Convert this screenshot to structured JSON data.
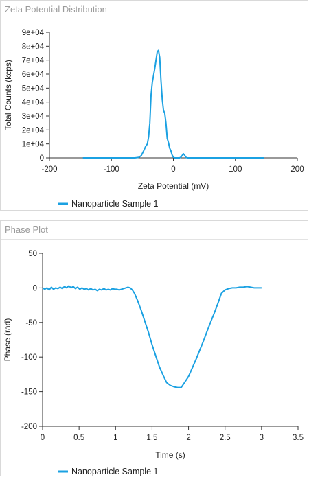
{
  "colors": {
    "series": "#1ba1e2",
    "axis": "#333333",
    "header_text": "#9a9a9a"
  },
  "panels": {
    "zeta": {
      "title": "Zeta Potential Distribution"
    },
    "phase": {
      "title": "Phase Plot"
    }
  },
  "chart_data": [
    {
      "type": "line",
      "title": "Zeta Potential Distribution",
      "xlabel": "Zeta Potential (mV)",
      "ylabel": "Total Counts (kcps)",
      "xlim": [
        -200,
        200
      ],
      "ylim": [
        0,
        90000
      ],
      "xticks": [
        -200,
        -100,
        0,
        100,
        200
      ],
      "xtick_labels": [
        "-200",
        "-100",
        "0",
        "100",
        "200"
      ],
      "yticks": [
        0,
        10000,
        20000,
        30000,
        40000,
        50000,
        60000,
        70000,
        80000,
        90000
      ],
      "ytick_labels": [
        "0",
        "1e+04",
        "2e+04",
        "3e+04",
        "4e+04",
        "5e+04",
        "6e+04",
        "7e+04",
        "8e+04",
        "9e+04"
      ],
      "legend_position": "bottom",
      "grid": false,
      "series": [
        {
          "name": "Nanoparticle Sample 1",
          "x": [
            -146,
            -120,
            -100,
            -80,
            -62,
            -56,
            -52,
            -48,
            -45,
            -42,
            -40,
            -38,
            -36,
            -34,
            -32,
            -30,
            -28,
            -26,
            -24,
            -22,
            -20,
            -18,
            -16,
            -14,
            -12,
            -10,
            -8,
            -6,
            -4,
            -2,
            0,
            2,
            4,
            6,
            8,
            10,
            12,
            14,
            16,
            18,
            20,
            22,
            26,
            30,
            40,
            60,
            80,
            100,
            120,
            146
          ],
          "y": [
            0,
            0,
            0,
            0,
            0,
            400,
            1500,
            5000,
            8000,
            10000,
            15000,
            25000,
            45000,
            54000,
            59000,
            64000,
            70000,
            76000,
            77000,
            72000,
            55000,
            42000,
            34000,
            32000,
            25000,
            14000,
            11000,
            7000,
            5000,
            2000,
            500,
            0,
            0,
            0,
            0,
            0,
            500,
            1500,
            3000,
            2000,
            500,
            0,
            0,
            0,
            0,
            0,
            0,
            0,
            0,
            0
          ]
        }
      ]
    },
    {
      "type": "line",
      "title": "Phase Plot",
      "xlabel": "Time (s)",
      "ylabel": "Phase (rad)",
      "xlim": [
        0,
        3.5
      ],
      "ylim": [
        -200,
        50
      ],
      "xticks": [
        0,
        0.5,
        1,
        1.5,
        2,
        2.5,
        3,
        3.5
      ],
      "xtick_labels": [
        "0",
        "0.5",
        "1",
        "1.5",
        "2",
        "2.5",
        "3",
        "3.5"
      ],
      "yticks": [
        -200,
        -150,
        -100,
        -50,
        0,
        50
      ],
      "ytick_labels": [
        "-200",
        "-150",
        "-100",
        "-50",
        "0",
        "50"
      ],
      "legend_position": "bottom",
      "grid": false,
      "series": [
        {
          "name": "Nanoparticle Sample 1",
          "x": [
            0.0,
            0.03,
            0.06,
            0.09,
            0.12,
            0.15,
            0.18,
            0.21,
            0.24,
            0.27,
            0.3,
            0.33,
            0.36,
            0.39,
            0.42,
            0.45,
            0.48,
            0.51,
            0.54,
            0.57,
            0.6,
            0.63,
            0.66,
            0.69,
            0.72,
            0.75,
            0.78,
            0.81,
            0.84,
            0.87,
            0.9,
            0.93,
            0.96,
            0.99,
            1.02,
            1.05,
            1.08,
            1.11,
            1.14,
            1.17,
            1.2,
            1.23,
            1.26,
            1.3,
            1.35,
            1.4,
            1.45,
            1.5,
            1.55,
            1.6,
            1.65,
            1.7,
            1.75,
            1.8,
            1.85,
            1.9,
            1.95,
            2.0,
            2.05,
            2.1,
            2.15,
            2.2,
            2.25,
            2.3,
            2.35,
            2.4,
            2.45,
            2.5,
            2.55,
            2.6,
            2.65,
            2.7,
            2.75,
            2.8,
            2.85,
            2.9,
            2.95,
            3.0
          ],
          "y": [
            0,
            -2,
            0,
            -3,
            1,
            -2,
            0,
            -1,
            1,
            -1,
            2,
            0,
            3,
            0,
            2,
            -1,
            1,
            -2,
            0,
            -2,
            -1,
            -3,
            -1,
            -3,
            -2,
            -4,
            -2,
            -3,
            -1,
            -3,
            -2,
            -3,
            -1,
            -2,
            -2,
            -3,
            -2,
            -1,
            0,
            1,
            0,
            -3,
            -8,
            -18,
            -32,
            -48,
            -64,
            -82,
            -98,
            -114,
            -126,
            -137,
            -141,
            -143,
            -144,
            -144,
            -136,
            -128,
            -116,
            -104,
            -91,
            -78,
            -64,
            -50,
            -37,
            -23,
            -8,
            -3,
            -1,
            0,
            0,
            1,
            1,
            2,
            1,
            0,
            0,
            0
          ]
        }
      ]
    }
  ]
}
